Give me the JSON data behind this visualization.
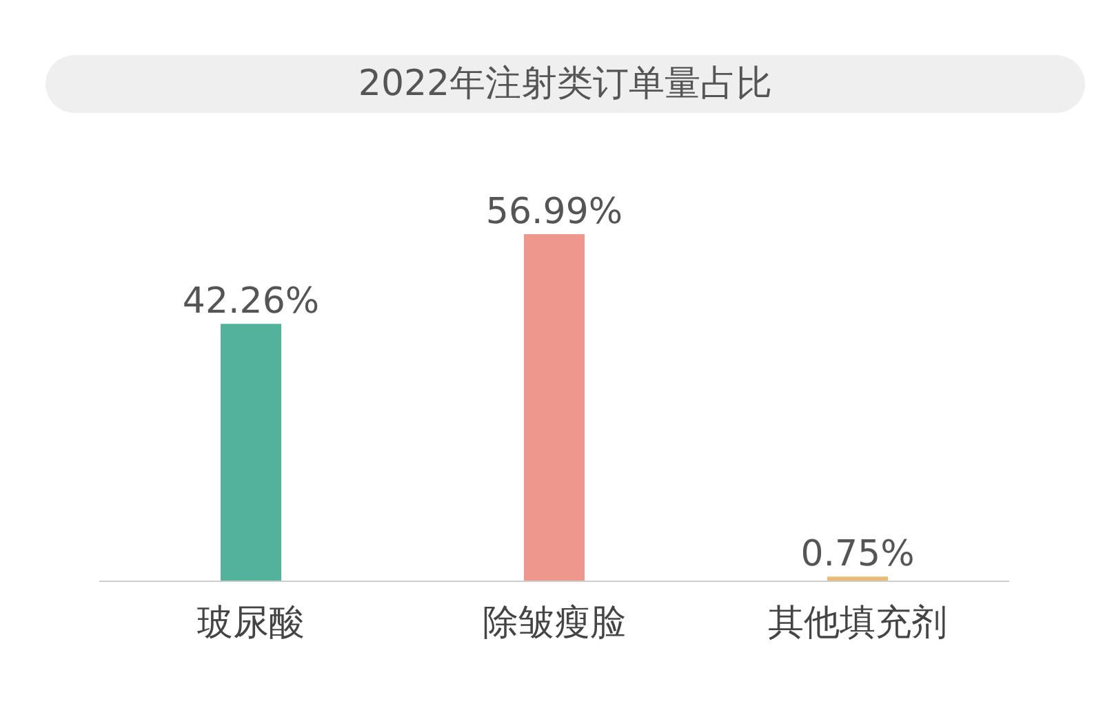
{
  "chart_data": {
    "type": "bar",
    "title": "2022年注射类订单量占比",
    "categories": [
      "玻尿酸",
      "除皱瘦脸",
      "其他填充剂"
    ],
    "values": [
      42.26,
      56.99,
      0.75
    ],
    "colors": [
      "#52b39a",
      "#ee978d",
      "#e9bb73"
    ],
    "value_labels": [
      "42.26%",
      "56.99%",
      "0.75%"
    ]
  }
}
